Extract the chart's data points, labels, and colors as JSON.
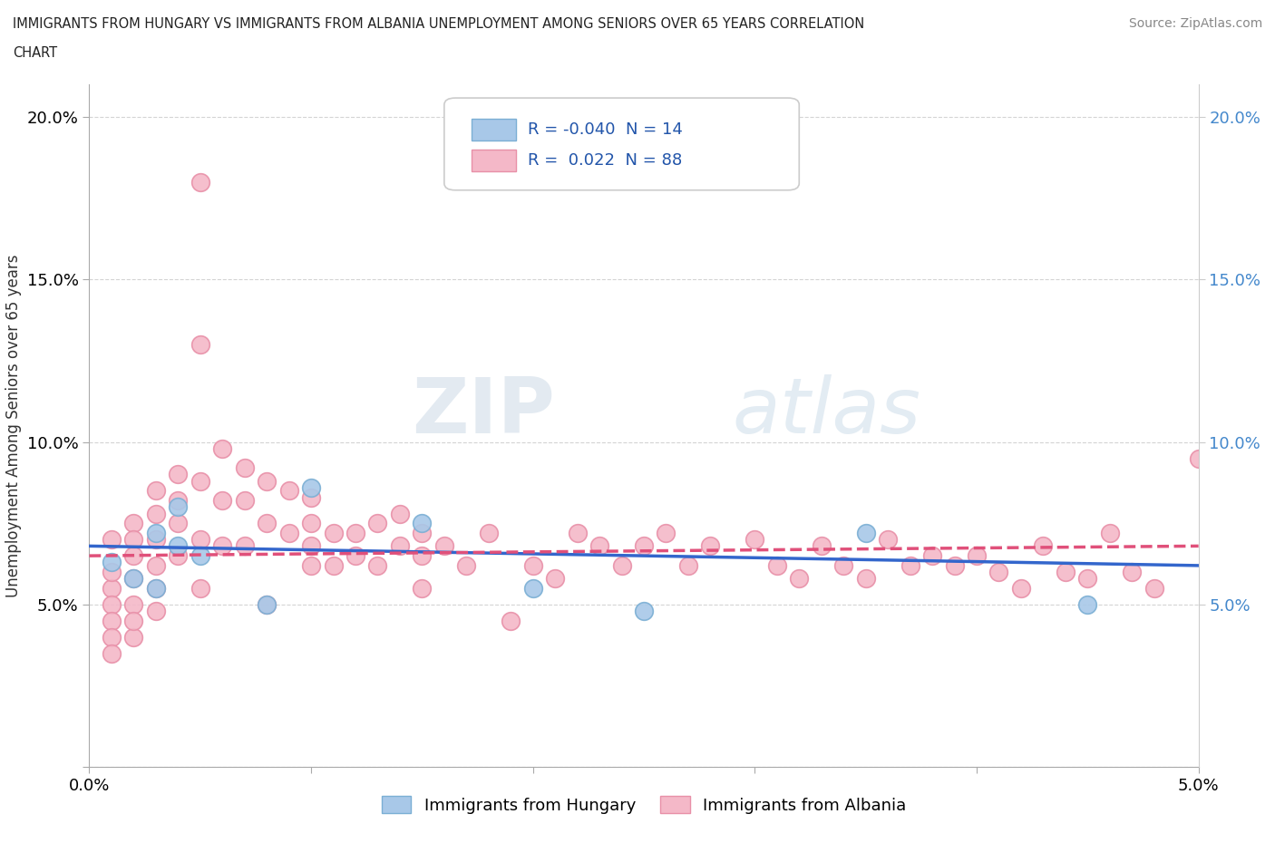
{
  "title_line1": "IMMIGRANTS FROM HUNGARY VS IMMIGRANTS FROM ALBANIA UNEMPLOYMENT AMONG SENIORS OVER 65 YEARS CORRELATION",
  "title_line2": "CHART",
  "source": "Source: ZipAtlas.com",
  "ylabel": "Unemployment Among Seniors over 65 years",
  "xlim": [
    0.0,
    0.05
  ],
  "ylim": [
    0.0,
    0.21
  ],
  "hungary_color": "#a8c8e8",
  "hungary_edge_color": "#7bafd4",
  "albania_color": "#f4b8c8",
  "albania_edge_color": "#e890a8",
  "hungary_line_color": "#3366cc",
  "albania_line_color": "#e0507a",
  "R_hungary": -0.04,
  "N_hungary": 14,
  "R_albania": 0.022,
  "N_albania": 88,
  "hungary_x": [
    0.001,
    0.002,
    0.003,
    0.003,
    0.004,
    0.004,
    0.005,
    0.008,
    0.01,
    0.015,
    0.02,
    0.025,
    0.035,
    0.045
  ],
  "hungary_y": [
    0.063,
    0.058,
    0.072,
    0.055,
    0.068,
    0.08,
    0.065,
    0.05,
    0.086,
    0.075,
    0.055,
    0.048,
    0.072,
    0.05
  ],
  "albania_x": [
    0.001,
    0.001,
    0.001,
    0.001,
    0.001,
    0.001,
    0.001,
    0.002,
    0.002,
    0.002,
    0.002,
    0.002,
    0.002,
    0.002,
    0.003,
    0.003,
    0.003,
    0.003,
    0.003,
    0.003,
    0.004,
    0.004,
    0.004,
    0.004,
    0.005,
    0.005,
    0.005,
    0.005,
    0.005,
    0.006,
    0.006,
    0.006,
    0.007,
    0.007,
    0.007,
    0.008,
    0.008,
    0.008,
    0.009,
    0.009,
    0.01,
    0.01,
    0.01,
    0.01,
    0.011,
    0.011,
    0.012,
    0.012,
    0.013,
    0.013,
    0.014,
    0.014,
    0.015,
    0.015,
    0.015,
    0.016,
    0.017,
    0.018,
    0.019,
    0.02,
    0.021,
    0.022,
    0.023,
    0.024,
    0.025,
    0.026,
    0.027,
    0.028,
    0.03,
    0.031,
    0.032,
    0.033,
    0.034,
    0.035,
    0.036,
    0.037,
    0.038,
    0.039,
    0.04,
    0.041,
    0.042,
    0.043,
    0.044,
    0.045,
    0.046,
    0.047,
    0.048,
    0.05
  ],
  "albania_y": [
    0.055,
    0.05,
    0.045,
    0.04,
    0.035,
    0.06,
    0.07,
    0.075,
    0.07,
    0.065,
    0.058,
    0.05,
    0.04,
    0.045,
    0.085,
    0.078,
    0.07,
    0.062,
    0.055,
    0.048,
    0.09,
    0.082,
    0.075,
    0.065,
    0.18,
    0.13,
    0.088,
    0.07,
    0.055,
    0.098,
    0.082,
    0.068,
    0.092,
    0.082,
    0.068,
    0.088,
    0.075,
    0.05,
    0.085,
    0.072,
    0.083,
    0.075,
    0.068,
    0.062,
    0.072,
    0.062,
    0.072,
    0.065,
    0.075,
    0.062,
    0.078,
    0.068,
    0.072,
    0.065,
    0.055,
    0.068,
    0.062,
    0.072,
    0.045,
    0.062,
    0.058,
    0.072,
    0.068,
    0.062,
    0.068,
    0.072,
    0.062,
    0.068,
    0.07,
    0.062,
    0.058,
    0.068,
    0.062,
    0.058,
    0.07,
    0.062,
    0.065,
    0.062,
    0.065,
    0.06,
    0.055,
    0.068,
    0.06,
    0.058,
    0.072,
    0.06,
    0.055,
    0.095
  ],
  "watermark_zip": "ZIP",
  "watermark_atlas": "atlas",
  "background_color": "#ffffff",
  "grid_color": "#d0d0d0",
  "legend_label_hungary": "Immigrants from Hungary",
  "legend_label_albania": "Immigrants from Albania"
}
